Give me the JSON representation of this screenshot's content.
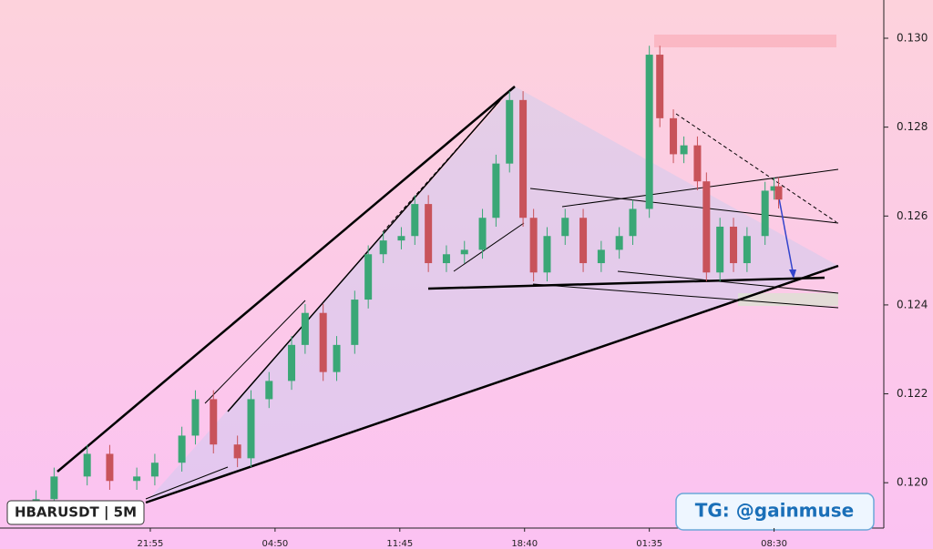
{
  "chart_data": {
    "type": "candlestick",
    "symbol_label": "HBARUSDT | 5M",
    "watermark": "TG: @gainmuse",
    "up_color": "#3aa776",
    "down_color": "#c8535a",
    "x": [
      -76,
      -64,
      -42,
      -27,
      -9,
      3,
      21,
      30,
      42,
      58,
      67,
      79,
      94,
      103,
      115,
      124,
      136,
      145,
      155,
      167,
      176,
      185,
      197,
      209,
      221,
      230,
      239,
      248,
      255,
      264,
      276,
      288,
      300,
      312,
      321,
      332,
      339,
      348,
      355,
      364,
      370,
      379,
      388,
      397,
      409,
      415,
      418
    ],
    "open": [
      0.1194,
      0.11963,
      0.12014,
      0.12065,
      0.12004,
      0.12014,
      0.12045,
      0.12106,
      0.12188,
      0.12086,
      0.12055,
      0.12188,
      0.12229,
      0.1231,
      0.12382,
      0.12249,
      0.1231,
      0.12412,
      0.12514,
      0.12545,
      0.12555,
      0.12627,
      0.12494,
      0.12514,
      0.12524,
      0.12596,
      0.12718,
      0.12861,
      0.12596,
      0.12473,
      0.12555,
      0.12596,
      0.12494,
      0.12524,
      0.12555,
      0.12616,
      0.12963,
      0.1282,
      0.12739,
      0.12759,
      0.12678,
      0.12473,
      0.12576,
      0.12494,
      0.12555,
      0.12657,
      0.12667
    ],
    "high": [
      0.11983,
      0.12034,
      0.12085,
      0.12085,
      0.12034,
      0.12065,
      0.12126,
      0.12208,
      0.12208,
      0.12106,
      0.12208,
      0.12249,
      0.1233,
      0.12402,
      0.12402,
      0.1233,
      0.12432,
      0.12534,
      0.12565,
      0.12575,
      0.12647,
      0.12647,
      0.12534,
      0.12544,
      0.12616,
      0.12738,
      0.12881,
      0.12881,
      0.12616,
      0.12575,
      0.12616,
      0.12616,
      0.12544,
      0.12575,
      0.12636,
      0.12983,
      0.12983,
      0.1284,
      0.12779,
      0.12779,
      0.12698,
      0.12596,
      0.12596,
      0.12575,
      0.12677,
      0.12687,
      0.12687
    ],
    "low": [
      0.1192,
      0.11943,
      0.11994,
      0.11984,
      0.11984,
      0.11994,
      0.12025,
      0.12086,
      0.12066,
      0.12035,
      0.12035,
      0.12168,
      0.12209,
      0.1229,
      0.12229,
      0.12229,
      0.1229,
      0.12392,
      0.12494,
      0.12525,
      0.12535,
      0.12474,
      0.12474,
      0.12494,
      0.12504,
      0.12576,
      0.12698,
      0.12576,
      0.12453,
      0.12453,
      0.12535,
      0.12474,
      0.12474,
      0.12504,
      0.12535,
      0.12596,
      0.128,
      0.12719,
      0.12719,
      0.12658,
      0.12453,
      0.12453,
      0.12474,
      0.12474,
      0.12535,
      0.12637,
      0.12617
    ],
    "close": [
      0.11963,
      0.12014,
      0.12065,
      0.12004,
      0.12014,
      0.12045,
      0.12106,
      0.12188,
      0.12086,
      0.12055,
      0.12188,
      0.12229,
      0.1231,
      0.12382,
      0.12249,
      0.1231,
      0.12412,
      0.12514,
      0.12545,
      0.12555,
      0.12627,
      0.12494,
      0.12514,
      0.12524,
      0.12596,
      0.12718,
      0.12861,
      0.12596,
      0.12473,
      0.12555,
      0.12596,
      0.12494,
      0.12524,
      0.12555,
      0.12616,
      0.12963,
      0.1282,
      0.12739,
      0.12759,
      0.12678,
      0.12473,
      0.12576,
      0.12494,
      0.12555,
      0.12657,
      0.12667,
      0.12637
    ],
    "xlim": [
      -100,
      488
    ],
    "xticks": [
      {
        "value": 0,
        "label": "21:55"
      },
      {
        "value": 83,
        "label": "04:50"
      },
      {
        "value": 166,
        "label": "11:45"
      },
      {
        "value": 249,
        "label": "18:40"
      },
      {
        "value": 332,
        "label": "01:35"
      },
      {
        "value": 415,
        "label": "08:30"
      }
    ],
    "ylim": [
      0.11898,
      0.13086
    ],
    "yticks": [
      {
        "value": 0.12,
        "label": "0.120"
      },
      {
        "value": 0.122,
        "label": "0.122"
      },
      {
        "value": 0.124,
        "label": "0.124"
      },
      {
        "value": 0.126,
        "label": "0.126"
      },
      {
        "value": 0.128,
        "label": "0.128"
      },
      {
        "value": 0.13,
        "label": "0.130"
      }
    ]
  }
}
